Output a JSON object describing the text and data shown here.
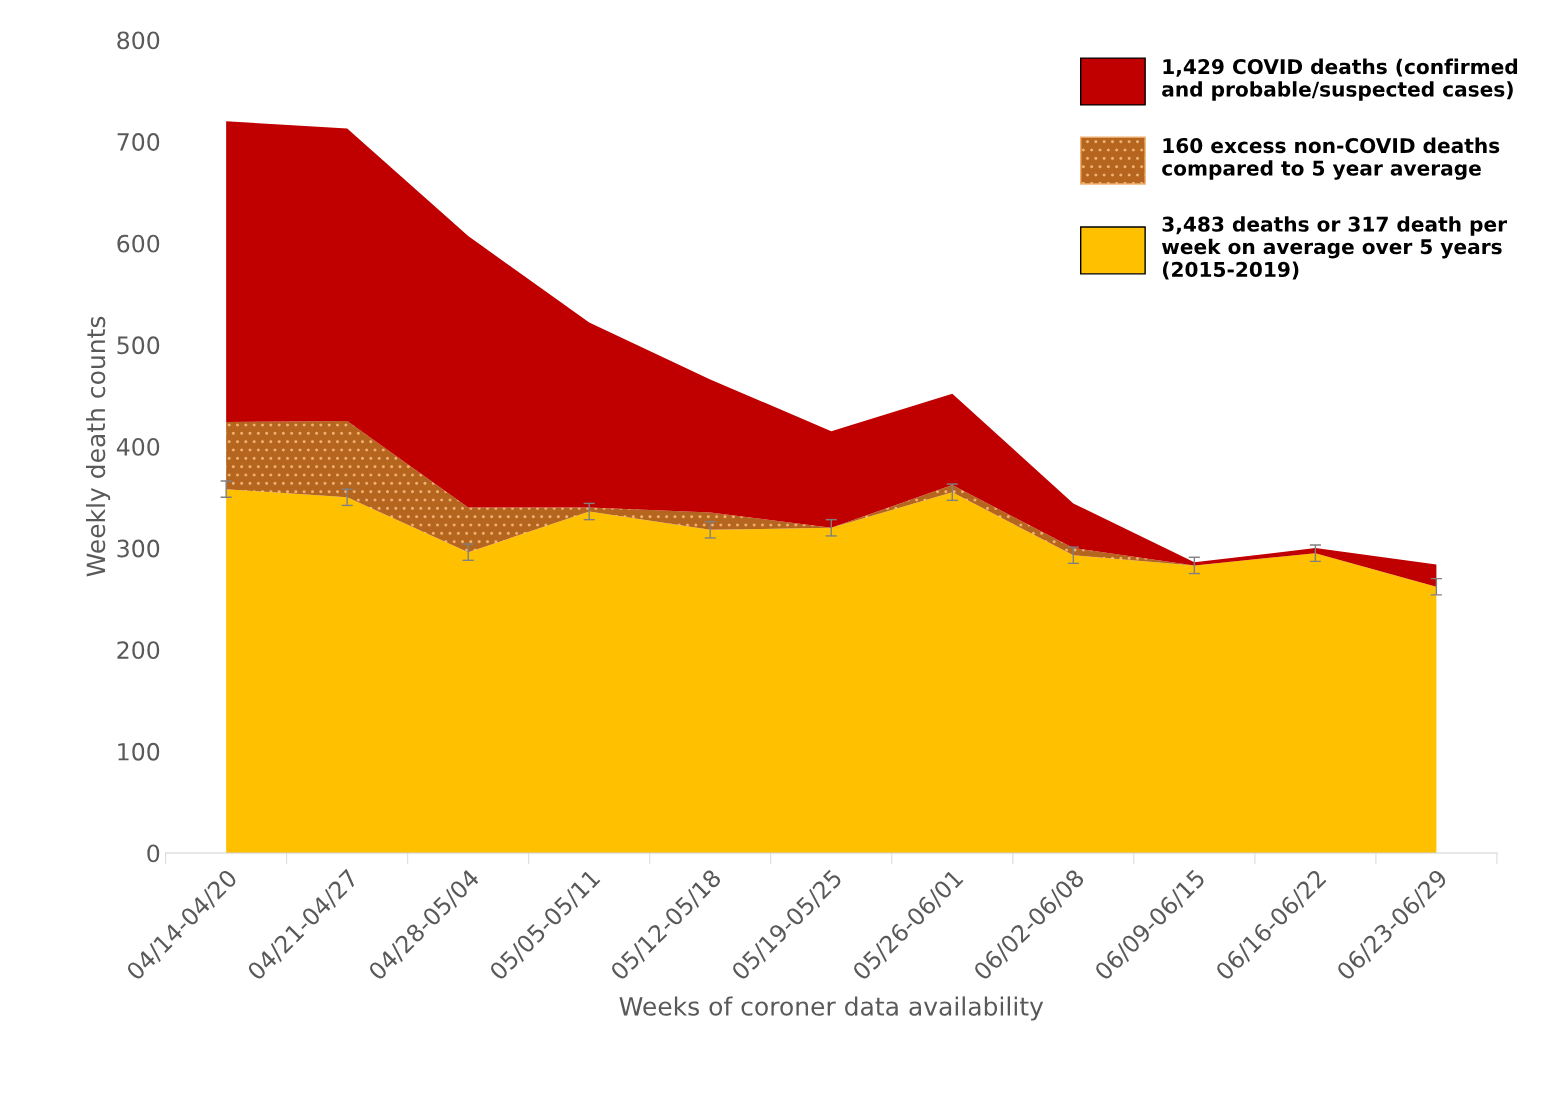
{
  "chart_data": {
    "type": "area",
    "stacked": true,
    "xlabel": "Weeks of coroner data availability",
    "ylabel": "Weekly death counts",
    "categories": [
      "04/14-04/20",
      "04/21-04/27",
      "04/28-05/04",
      "05/05-05/11",
      "05/12-05/18",
      "05/19-05/25",
      "05/26-06/01",
      "06/02-06/08",
      "06/09-06/15",
      "06/16-06/22",
      "06/23-06/29"
    ],
    "series": [
      {
        "name": "3,483 deaths or 317 death per week on average over 5 years (2015-2019)",
        "color": "#ffc000",
        "values": [
          358,
          350,
          296,
          336,
          318,
          320,
          355,
          293,
          283,
          295,
          262
        ],
        "errors": [
          8,
          8,
          8,
          8,
          8,
          8,
          8,
          8,
          8,
          8,
          8
        ]
      },
      {
        "name": "160 excess non-COVID deaths compared to 5 year average",
        "color": "#b5651d",
        "values": [
          66,
          75,
          44,
          4,
          17,
          0,
          7,
          7,
          0,
          0,
          0
        ]
      },
      {
        "name": "1,429 COVID deaths (confirmed and probable/suspected cases)",
        "color": "#c00000",
        "values": [
          296,
          288,
          267,
          182,
          131,
          95,
          90,
          44,
          3,
          5,
          22
        ]
      }
    ],
    "ylim": [
      0,
      800
    ],
    "yticks": [
      0,
      100,
      200,
      300,
      400,
      500,
      600,
      700,
      800
    ],
    "grid": false,
    "legend": "top right"
  }
}
